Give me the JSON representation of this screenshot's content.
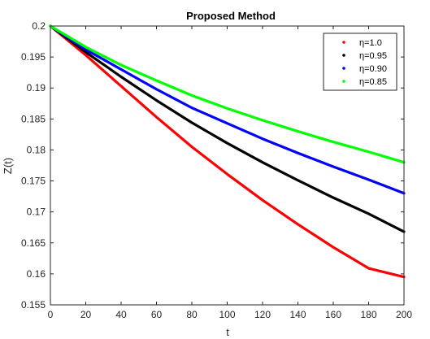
{
  "chart_data": {
    "type": "line",
    "title": "Proposed Method",
    "xlabel": "t",
    "ylabel": "Z(t)",
    "xlim": [
      0,
      200
    ],
    "ylim": [
      0.155,
      0.2
    ],
    "xticks": [
      0,
      20,
      40,
      60,
      80,
      100,
      120,
      140,
      160,
      180,
      200
    ],
    "yticks": [
      0.155,
      0.16,
      0.165,
      0.17,
      0.175,
      0.18,
      0.185,
      0.19,
      0.195,
      0.2
    ],
    "xtick_labels": [
      "0",
      "20",
      "40",
      "60",
      "80",
      "100",
      "120",
      "140",
      "160",
      "180",
      "200"
    ],
    "ytick_labels": [
      "0.155",
      "0.16",
      "0.165",
      "0.17",
      "0.175",
      "0.18",
      "0.185",
      "0.19",
      "0.195",
      "0.2"
    ],
    "grid": false,
    "legend_position": "top-right",
    "x": [
      0,
      20,
      40,
      60,
      80,
      100,
      120,
      140,
      160,
      180,
      200
    ],
    "series": [
      {
        "name": "η=1.0",
        "color": "#ff0000",
        "values": [
          0.2,
          0.1953,
          0.1903,
          0.1853,
          0.1805,
          0.1761,
          0.1719,
          0.168,
          0.1643,
          0.1609,
          0.1595
        ]
      },
      {
        "name": "η=0.95",
        "color": "#000000",
        "values": [
          0.2,
          0.1958,
          0.1918,
          0.188,
          0.1844,
          0.1811,
          0.178,
          0.1751,
          0.1723,
          0.1697,
          0.1668
        ]
      },
      {
        "name": "η=0.90",
        "color": "#0000ff",
        "values": [
          0.2,
          0.1962,
          0.193,
          0.1898,
          0.1868,
          0.1843,
          0.1818,
          0.1795,
          0.1773,
          0.1752,
          0.173
        ]
      },
      {
        "name": "η=0.85",
        "color": "#00ff00",
        "values": [
          0.2,
          0.1966,
          0.1937,
          0.1912,
          0.1888,
          0.1867,
          0.1848,
          0.183,
          0.1813,
          0.1797,
          0.178
        ]
      }
    ]
  }
}
